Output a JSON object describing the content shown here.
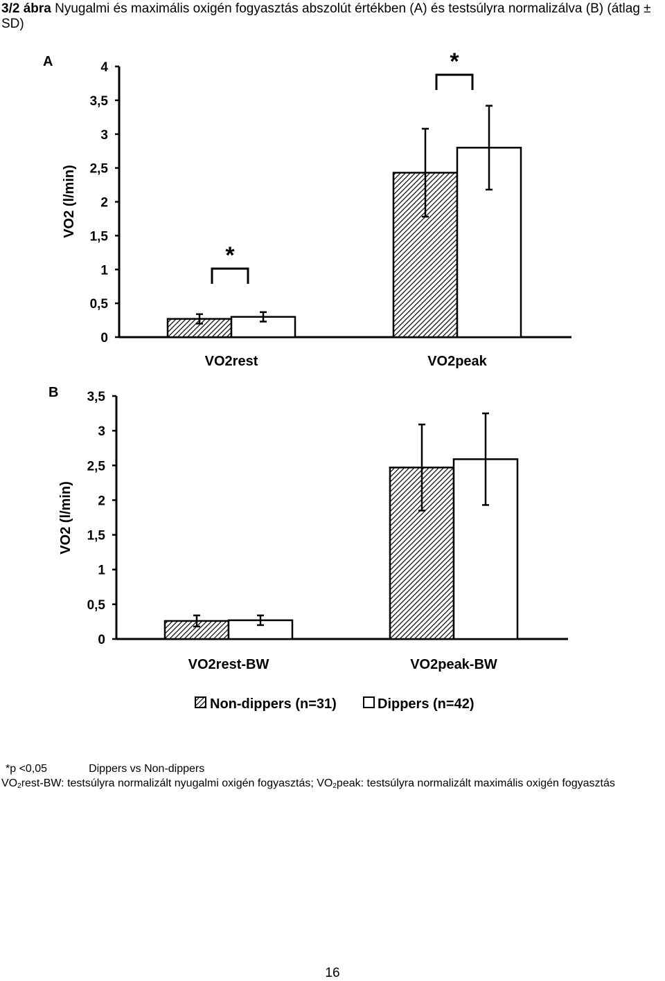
{
  "caption": {
    "number": "3/2 ábra",
    "text": "Nyugalmi és maximális oxigén fogyasztás abszolút értékben (A) és testsúlyra normalizálva (B) (átlag ± SD)"
  },
  "chart_data": [
    {
      "type": "bar",
      "panel_label": "A",
      "ylabel": "VO2 (l/min)",
      "ylim": [
        0,
        4
      ],
      "yticks": [
        "0",
        "0,5",
        "1",
        "1,5",
        "2",
        "2,5",
        "3",
        "3,5",
        "4"
      ],
      "categories": [
        "VO2rest",
        "VO2peak"
      ],
      "series": [
        {
          "name": "Non-dippers (n=31)",
          "pattern": "hatched",
          "values": [
            0.27,
            2.43
          ],
          "sd": [
            0.07,
            0.65
          ]
        },
        {
          "name": "Dippers (n=42)",
          "pattern": "open",
          "values": [
            0.3,
            2.8
          ],
          "sd": [
            0.07,
            0.62
          ]
        }
      ],
      "significance": [
        "*",
        "*"
      ]
    },
    {
      "type": "bar",
      "panel_label": "B",
      "ylabel": "VO2 (l/min)",
      "ylim": [
        0,
        3.5
      ],
      "yticks": [
        "0",
        "0,5",
        "1",
        "1,5",
        "2",
        "2,5",
        "3",
        "3,5"
      ],
      "categories": [
        "VO2rest-BW",
        "VO2peak-BW"
      ],
      "series": [
        {
          "name": "Non-dippers (n=31)",
          "pattern": "hatched",
          "values": [
            0.26,
            2.47
          ],
          "sd": [
            0.08,
            0.62
          ]
        },
        {
          "name": "Dippers (n=42)",
          "pattern": "open",
          "values": [
            0.27,
            2.59
          ],
          "sd": [
            0.07,
            0.66
          ]
        }
      ],
      "significance": [
        "",
        ""
      ]
    }
  ],
  "legend": {
    "items": [
      "Non-dippers (n=31)",
      "Dippers (n=42)"
    ]
  },
  "notes": {
    "pvalue": "*p <0,05",
    "comparison": "Dippers vs Non-dippers",
    "vo2_prefix_1": "VO",
    "sub2_1": "2",
    "def1": "rest-BW: testsúlyra normalizált nyugalmi oxigén fogyasztás; ",
    "vo2_prefix_2": "VO",
    "sub2_2": "2",
    "def2": "peak: testsúlyra normalizált maximális oxigén fogyasztás"
  },
  "page_number": "16"
}
